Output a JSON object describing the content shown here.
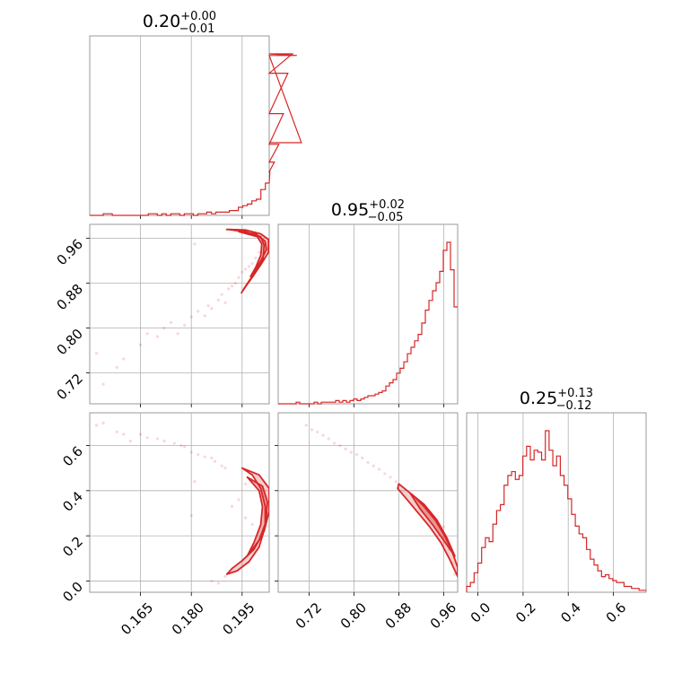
{
  "chart_data": {
    "type": "corner",
    "color": "#d62728",
    "grid": true,
    "parameters": [
      {
        "index": 0,
        "range": [
          0.15,
          0.203
        ],
        "ticks": [
          0.165,
          0.18,
          0.195
        ],
        "tick_labels": [
          "0.165",
          "0.180",
          "0.195"
        ],
        "title": {
          "median": "0.20",
          "plus": "+0.00",
          "minus": "−0.01"
        }
      },
      {
        "index": 1,
        "range": [
          0.665,
          0.985
        ],
        "ticks": [
          0.72,
          0.8,
          0.88,
          0.96
        ],
        "tick_labels": [
          "0.72",
          "0.80",
          "0.88",
          "0.96"
        ],
        "title": {
          "median": "0.95",
          "plus": "+0.02",
          "minus": "−0.05"
        }
      },
      {
        "index": 2,
        "range": [
          -0.05,
          0.745
        ],
        "ticks": [
          0.0,
          0.2,
          0.4,
          0.6
        ],
        "tick_labels": [
          "0.0",
          "0.2",
          "0.4",
          "0.6"
        ],
        "title": {
          "median": "0.25",
          "plus": "+0.13",
          "minus": "−0.12"
        }
      }
    ],
    "histograms": [
      {
        "param": 0,
        "start": 0.15,
        "step": 0.00133,
        "heights": [
          0,
          0,
          0,
          1,
          1,
          0,
          0,
          0,
          0,
          0,
          0,
          0,
          0,
          1,
          1,
          0,
          1,
          0,
          1,
          1,
          0,
          1,
          1,
          0,
          1,
          1,
          2,
          1,
          2,
          2,
          2,
          3,
          3,
          5,
          6,
          7,
          9,
          10,
          16,
          20,
          27,
          33,
          44,
          63,
          88,
          100,
          99,
          45
        ]
      },
      {
        "param": 1,
        "start": 0.665,
        "step": 0.0064,
        "heights": [
          0,
          0,
          0,
          0,
          0,
          1,
          0,
          0,
          0,
          0,
          1,
          0,
          1,
          1,
          1,
          1,
          2,
          1,
          2,
          1,
          2,
          3,
          2,
          3,
          4,
          5,
          5,
          6,
          7,
          8,
          11,
          13,
          15,
          19,
          22,
          26,
          31,
          35,
          39,
          43,
          50,
          58,
          64,
          70,
          75,
          82,
          95,
          100,
          83,
          60
        ]
      },
      {
        "param": 2,
        "start": -0.05,
        "step": 0.0166,
        "heights": [
          3,
          5,
          10,
          15,
          23,
          28,
          26,
          35,
          42,
          45,
          55,
          60,
          62,
          58,
          60,
          70,
          75,
          68,
          73,
          72,
          68,
          83,
          73,
          65,
          70,
          60,
          55,
          48,
          40,
          34,
          30,
          28,
          22,
          17,
          14,
          11,
          8,
          9,
          7,
          6,
          5,
          5,
          3,
          3,
          2,
          2,
          1,
          1
        ]
      }
    ],
    "panels_2d": [
      {
        "x_param": 0,
        "y_param": 1,
        "contours": [
          [
            [
              0.1905,
              0.976
            ],
            [
              0.196,
              0.975
            ],
            [
              0.2005,
              0.968
            ],
            [
              0.2028,
              0.958
            ],
            [
              0.2028,
              0.935
            ],
            [
              0.2005,
              0.913
            ],
            [
              0.1985,
              0.895
            ],
            [
              0.1965,
              0.878
            ],
            [
              0.1948,
              0.863
            ],
            [
              0.1955,
              0.87
            ],
            [
              0.1975,
              0.888
            ],
            [
              0.1995,
              0.905
            ],
            [
              0.2012,
              0.925
            ],
            [
              0.2015,
              0.948
            ],
            [
              0.2005,
              0.963
            ],
            [
              0.196,
              0.972
            ],
            [
              0.1905,
              0.976
            ]
          ],
          [
            [
              0.194,
              0.972
            ],
            [
              0.199,
              0.968
            ],
            [
              0.2018,
              0.955
            ],
            [
              0.2022,
              0.94
            ],
            [
              0.2005,
              0.92
            ],
            [
              0.1988,
              0.902
            ],
            [
              0.1975,
              0.892
            ],
            [
              0.199,
              0.908
            ],
            [
              0.2005,
              0.93
            ],
            [
              0.2008,
              0.95
            ],
            [
              0.1995,
              0.963
            ],
            [
              0.194,
              0.972
            ]
          ]
        ],
        "scatter": [
          [
            0.152,
            0.755
          ],
          [
            0.154,
            0.7
          ],
          [
            0.158,
            0.73
          ],
          [
            0.16,
            0.745
          ],
          [
            0.165,
            0.77
          ],
          [
            0.167,
            0.79
          ],
          [
            0.17,
            0.785
          ],
          [
            0.172,
            0.8
          ],
          [
            0.174,
            0.81
          ],
          [
            0.176,
            0.79
          ],
          [
            0.178,
            0.805
          ],
          [
            0.18,
            0.82
          ],
          [
            0.181,
            0.95
          ],
          [
            0.182,
            0.83
          ],
          [
            0.184,
            0.822
          ],
          [
            0.185,
            0.84
          ],
          [
            0.186,
            0.835
          ],
          [
            0.188,
            0.85
          ],
          [
            0.189,
            0.86
          ],
          [
            0.19,
            0.845
          ],
          [
            0.191,
            0.87
          ],
          [
            0.192,
            0.875
          ],
          [
            0.193,
            0.88
          ],
          [
            0.194,
            0.89
          ],
          [
            0.195,
            0.9
          ],
          [
            0.196,
            0.905
          ],
          [
            0.197,
            0.91
          ],
          [
            0.198,
            0.915
          ],
          [
            0.199,
            0.925
          ],
          [
            0.2,
            0.935
          ],
          [
            0.1905,
            0.975
          ],
          [
            0.193,
            0.974
          ],
          [
            0.196,
            0.972
          ],
          [
            0.198,
            0.969
          ]
        ]
      },
      {
        "x_param": 0,
        "y_param": 2,
        "contours": [
          [
            [
              0.195,
              0.5
            ],
            [
              0.2,
              0.47
            ],
            [
              0.203,
              0.41
            ],
            [
              0.203,
              0.31
            ],
            [
              0.2015,
              0.22
            ],
            [
              0.1985,
              0.14
            ],
            [
              0.195,
              0.09
            ],
            [
              0.192,
              0.055
            ],
            [
              0.1905,
              0.03
            ],
            [
              0.1935,
              0.045
            ],
            [
              0.197,
              0.085
            ],
            [
              0.2,
              0.15
            ],
            [
              0.2018,
              0.24
            ],
            [
              0.2018,
              0.33
            ],
            [
              0.2005,
              0.41
            ],
            [
              0.198,
              0.47
            ],
            [
              0.195,
              0.5
            ]
          ],
          [
            [
              0.1965,
              0.46
            ],
            [
              0.201,
              0.42
            ],
            [
              0.2025,
              0.35
            ],
            [
              0.202,
              0.26
            ],
            [
              0.2,
              0.18
            ],
            [
              0.1965,
              0.11
            ],
            [
              0.1985,
              0.17
            ],
            [
              0.2005,
              0.25
            ],
            [
              0.201,
              0.33
            ],
            [
              0.2,
              0.4
            ],
            [
              0.1965,
              0.46
            ]
          ]
        ],
        "scatter": [
          [
            0.152,
            0.69
          ],
          [
            0.154,
            0.7
          ],
          [
            0.158,
            0.66
          ],
          [
            0.16,
            0.65
          ],
          [
            0.162,
            0.62
          ],
          [
            0.165,
            0.65
          ],
          [
            0.167,
            0.635
          ],
          [
            0.17,
            0.63
          ],
          [
            0.172,
            0.62
          ],
          [
            0.175,
            0.61
          ],
          [
            0.177,
            0.6
          ],
          [
            0.178,
            0.595
          ],
          [
            0.18,
            0.57
          ],
          [
            0.182,
            0.56
          ],
          [
            0.184,
            0.55
          ],
          [
            0.186,
            0.545
          ],
          [
            0.187,
            0.53
          ],
          [
            0.189,
            0.51
          ],
          [
            0.19,
            0.5
          ],
          [
            0.18,
            0.29
          ],
          [
            0.181,
            0.44
          ],
          [
            0.186,
            0.0
          ],
          [
            0.188,
            -0.01
          ],
          [
            0.19,
            0.02
          ],
          [
            0.192,
            0.33
          ],
          [
            0.194,
            0.36
          ],
          [
            0.196,
            0.28
          ],
          [
            0.198,
            0.25
          ],
          [
            0.196,
            0.43
          ]
        ]
      },
      {
        "x_param": 1,
        "y_param": 2,
        "contours": [
          [
            [
              0.88,
              0.43
            ],
            [
              0.905,
              0.38
            ],
            [
              0.925,
              0.33
            ],
            [
              0.945,
              0.27
            ],
            [
              0.962,
              0.2
            ],
            [
              0.975,
              0.13
            ],
            [
              0.985,
              0.06
            ],
            [
              0.985,
              0.02
            ],
            [
              0.97,
              0.1
            ],
            [
              0.955,
              0.17
            ],
            [
              0.935,
              0.24
            ],
            [
              0.915,
              0.3
            ],
            [
              0.895,
              0.36
            ],
            [
              0.878,
              0.41
            ],
            [
              0.88,
              0.43
            ]
          ],
          [
            [
              0.9,
              0.39
            ],
            [
              0.925,
              0.34
            ],
            [
              0.948,
              0.27
            ],
            [
              0.966,
              0.19
            ],
            [
              0.98,
              0.11
            ],
            [
              0.96,
              0.18
            ],
            [
              0.94,
              0.25
            ],
            [
              0.918,
              0.32
            ],
            [
              0.9,
              0.39
            ]
          ]
        ],
        "scatter": [
          [
            0.715,
            0.69
          ],
          [
            0.725,
            0.67
          ],
          [
            0.735,
            0.66
          ],
          [
            0.745,
            0.645
          ],
          [
            0.755,
            0.63
          ],
          [
            0.765,
            0.61
          ],
          [
            0.775,
            0.6
          ],
          [
            0.785,
            0.585
          ],
          [
            0.795,
            0.57
          ],
          [
            0.805,
            0.56
          ],
          [
            0.815,
            0.545
          ],
          [
            0.825,
            0.525
          ],
          [
            0.835,
            0.51
          ],
          [
            0.845,
            0.495
          ],
          [
            0.855,
            0.475
          ],
          [
            0.865,
            0.46
          ],
          [
            0.875,
            0.44
          ],
          [
            0.96,
            0.24
          ],
          [
            0.97,
            0.14
          ],
          [
            0.975,
            0.08
          ],
          [
            0.98,
            0.03
          ]
        ]
      }
    ]
  }
}
